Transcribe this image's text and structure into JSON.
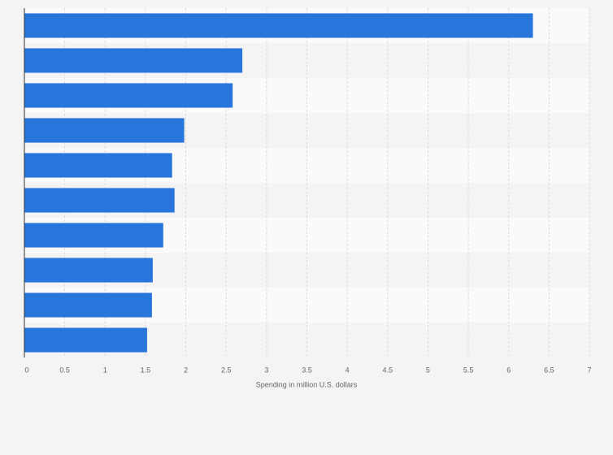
{
  "chart_data": {
    "type": "hbar",
    "xlabel": "Spending in million U.S. dollars",
    "categories": [
      null,
      null,
      null,
      null,
      null,
      null,
      null,
      null,
      null,
      null
    ],
    "values": [
      6.3,
      2.7,
      2.58,
      1.98,
      1.83,
      1.86,
      1.72,
      1.59,
      1.58,
      1.52
    ],
    "color": "#2875db",
    "xlim": [
      0,
      7
    ],
    "xticks": [
      0,
      0.5,
      1,
      1.5,
      2,
      2.5,
      3,
      3.5,
      4,
      4.5,
      5,
      5.5,
      6,
      6.5,
      7
    ],
    "grid": true
  }
}
